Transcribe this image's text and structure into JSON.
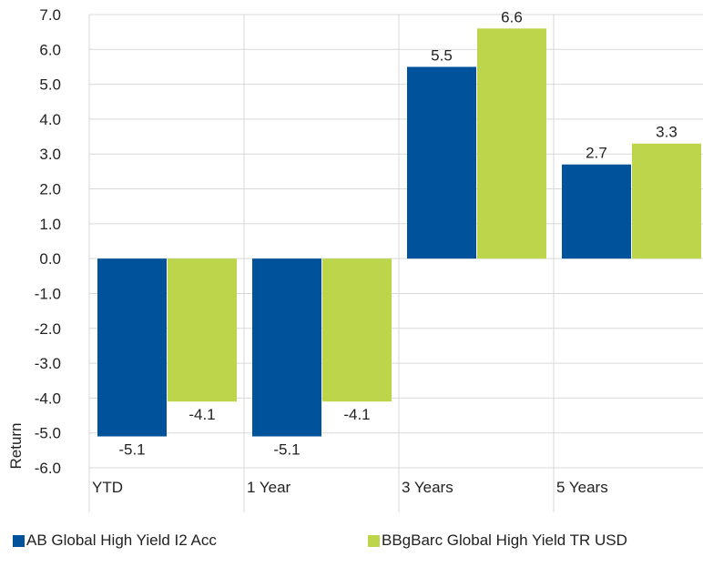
{
  "chart_data": {
    "type": "bar",
    "categories": [
      "YTD",
      "1 Year",
      "3 Years",
      "5 Years"
    ],
    "series": [
      {
        "name": "AB Global High Yield I2 Acc",
        "color": "#00529b",
        "values": [
          -5.1,
          -5.1,
          5.5,
          2.7
        ]
      },
      {
        "name": "BBgBarc Global High Yield TR USD",
        "color": "#bdd54a",
        "values": [
          -4.1,
          -4.1,
          6.6,
          3.3
        ]
      }
    ],
    "data_labels": [
      [
        "-5.1",
        "-5.1",
        "5.5",
        "2.7"
      ],
      [
        "-4.1",
        "-4.1",
        "6.6",
        "3.3"
      ]
    ],
    "ylabel": "Return",
    "ylim": [
      -6.0,
      7.0
    ],
    "yticks": [
      "7.0",
      "6.0",
      "5.0",
      "4.0",
      "3.0",
      "2.0",
      "1.0",
      "0.0",
      "-1.0",
      "-2.0",
      "-3.0",
      "-4.0",
      "-5.0",
      "-6.0"
    ],
    "grid": true,
    "legend_position": "bottom"
  }
}
